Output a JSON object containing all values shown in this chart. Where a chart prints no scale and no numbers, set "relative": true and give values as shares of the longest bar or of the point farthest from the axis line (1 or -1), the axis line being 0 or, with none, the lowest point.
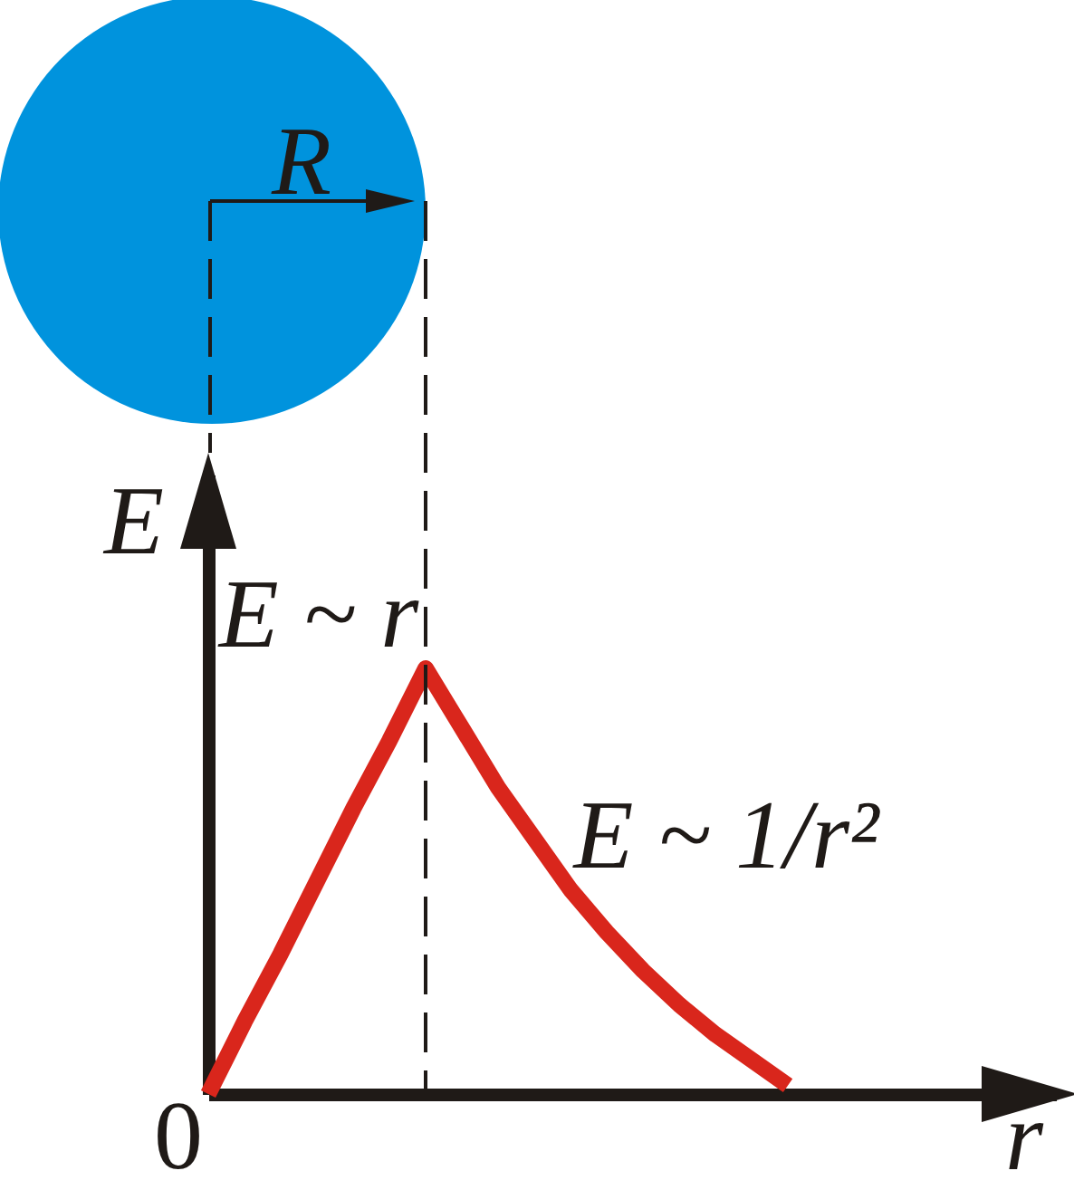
{
  "chart_data": {
    "type": "line",
    "xlabel": "r",
    "ylabel": "E",
    "relative": true,
    "categories": [
      null,
      null,
      null,
      null,
      null,
      null,
      null,
      null,
      null,
      null,
      null,
      null,
      null,
      null,
      null,
      null,
      null
    ],
    "series": [
      {
        "color": "#d9261c",
        "values": [
          0,
          0.17,
          0.33,
          0.5,
          0.67,
          0.83,
          1,
          0.86,
          0.72,
          0.6,
          0.48,
          0.38,
          0.29,
          0.21,
          0.14,
          0.08,
          0.02
        ]
      }
    ],
    "annotations": [
      "R",
      "E ~ r",
      "E ~ 1/r²",
      "0"
    ]
  }
}
